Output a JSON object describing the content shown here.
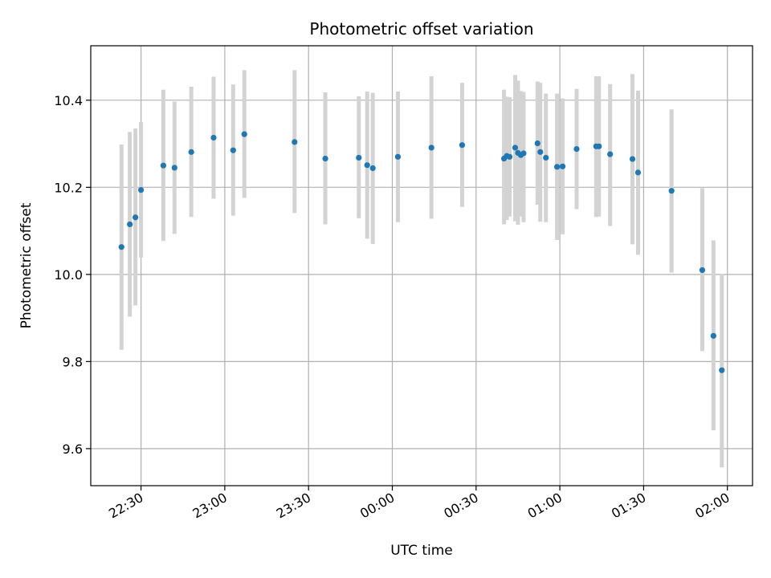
{
  "chart_data": {
    "type": "scatter",
    "title": "Photometric offset variation",
    "xlabel": "UTC time",
    "ylabel": "Photometric offset",
    "x_axis_kind": "time",
    "xlim": [
      "22:12",
      "02:09"
    ],
    "ylim": [
      9.515,
      10.525
    ],
    "yticks": [
      9.6,
      9.8,
      10.0,
      10.2,
      10.4
    ],
    "ytick_labels": [
      "9.6",
      "9.8",
      "10.0",
      "10.2",
      "10.4"
    ],
    "xticks": [
      "22:30",
      "23:00",
      "23:30",
      "00:00",
      "00:30",
      "01:00",
      "01:30",
      "02:00"
    ],
    "xtick_labels": [
      "22:30",
      "23:00",
      "23:30",
      "00:00",
      "00:30",
      "01:00",
      "01:30",
      "02:00"
    ],
    "grid": true,
    "colors": {
      "point": "#1f77b4",
      "errorbar": "#d3d3d3",
      "grid": "#b0b0b0"
    },
    "points": [
      {
        "t": "22:23",
        "y": 10.063,
        "lo": 9.827,
        "hi": 10.298
      },
      {
        "t": "22:26",
        "y": 10.115,
        "lo": 9.903,
        "hi": 10.327
      },
      {
        "t": "22:28",
        "y": 10.131,
        "lo": 9.929,
        "hi": 10.335
      },
      {
        "t": "22:30",
        "y": 10.194,
        "lo": 10.039,
        "hi": 10.35
      },
      {
        "t": "22:38",
        "y": 10.25,
        "lo": 10.077,
        "hi": 10.424
      },
      {
        "t": "22:42",
        "y": 10.245,
        "lo": 10.093,
        "hi": 10.397
      },
      {
        "t": "22:48",
        "y": 10.281,
        "lo": 10.132,
        "hi": 10.431
      },
      {
        "t": "22:56",
        "y": 10.314,
        "lo": 10.174,
        "hi": 10.454
      },
      {
        "t": "23:03",
        "y": 10.285,
        "lo": 10.135,
        "hi": 10.436
      },
      {
        "t": "23:07",
        "y": 10.322,
        "lo": 10.176,
        "hi": 10.469
      },
      {
        "t": "23:25",
        "y": 10.304,
        "lo": 10.141,
        "hi": 10.469
      },
      {
        "t": "23:36",
        "y": 10.266,
        "lo": 10.115,
        "hi": 10.418
      },
      {
        "t": "23:48",
        "y": 10.268,
        "lo": 10.129,
        "hi": 10.409
      },
      {
        "t": "23:51",
        "y": 10.251,
        "lo": 10.082,
        "hi": 10.42
      },
      {
        "t": "23:53",
        "y": 10.244,
        "lo": 10.07,
        "hi": 10.417
      },
      {
        "t": "00:02",
        "y": 10.27,
        "lo": 10.12,
        "hi": 10.42
      },
      {
        "t": "00:14",
        "y": 10.291,
        "lo": 10.128,
        "hi": 10.455
      },
      {
        "t": "00:25",
        "y": 10.297,
        "lo": 10.155,
        "hi": 10.44
      },
      {
        "t": "00:40",
        "y": 10.266,
        "lo": 10.115,
        "hi": 10.424
      },
      {
        "t": "00:41",
        "y": 10.272,
        "lo": 10.125,
        "hi": 10.408
      },
      {
        "t": "00:42",
        "y": 10.27,
        "lo": 10.133,
        "hi": 10.407
      },
      {
        "t": "00:44",
        "y": 10.291,
        "lo": 10.122,
        "hi": 10.458
      },
      {
        "t": "00:45",
        "y": 10.279,
        "lo": 10.114,
        "hi": 10.445
      },
      {
        "t": "00:46",
        "y": 10.274,
        "lo": 10.133,
        "hi": 10.421
      },
      {
        "t": "00:47",
        "y": 10.278,
        "lo": 10.12,
        "hi": 10.419
      },
      {
        "t": "00:52",
        "y": 10.301,
        "lo": 10.16,
        "hi": 10.443
      },
      {
        "t": "00:53",
        "y": 10.281,
        "lo": 10.121,
        "hi": 10.44
      },
      {
        "t": "00:55",
        "y": 10.268,
        "lo": 10.12,
        "hi": 10.415
      },
      {
        "t": "00:59",
        "y": 10.247,
        "lo": 10.079,
        "hi": 10.415
      },
      {
        "t": "01:01",
        "y": 10.248,
        "lo": 10.092,
        "hi": 10.404
      },
      {
        "t": "01:06",
        "y": 10.288,
        "lo": 10.15,
        "hi": 10.426
      },
      {
        "t": "01:13",
        "y": 10.294,
        "lo": 10.132,
        "hi": 10.455
      },
      {
        "t": "01:14",
        "y": 10.294,
        "lo": 10.133,
        "hi": 10.455
      },
      {
        "t": "01:18",
        "y": 10.276,
        "lo": 10.111,
        "hi": 10.437
      },
      {
        "t": "01:26",
        "y": 10.265,
        "lo": 10.069,
        "hi": 10.46
      },
      {
        "t": "01:28",
        "y": 10.234,
        "lo": 10.045,
        "hi": 10.422
      },
      {
        "t": "01:40",
        "y": 10.192,
        "lo": 10.004,
        "hi": 10.379
      },
      {
        "t": "01:51",
        "y": 10.01,
        "lo": 9.824,
        "hi": 10.198
      },
      {
        "t": "01:55",
        "y": 9.859,
        "lo": 9.642,
        "hi": 10.078
      },
      {
        "t": "01:58",
        "y": 9.78,
        "lo": 9.557,
        "hi": 10.001
      }
    ]
  }
}
